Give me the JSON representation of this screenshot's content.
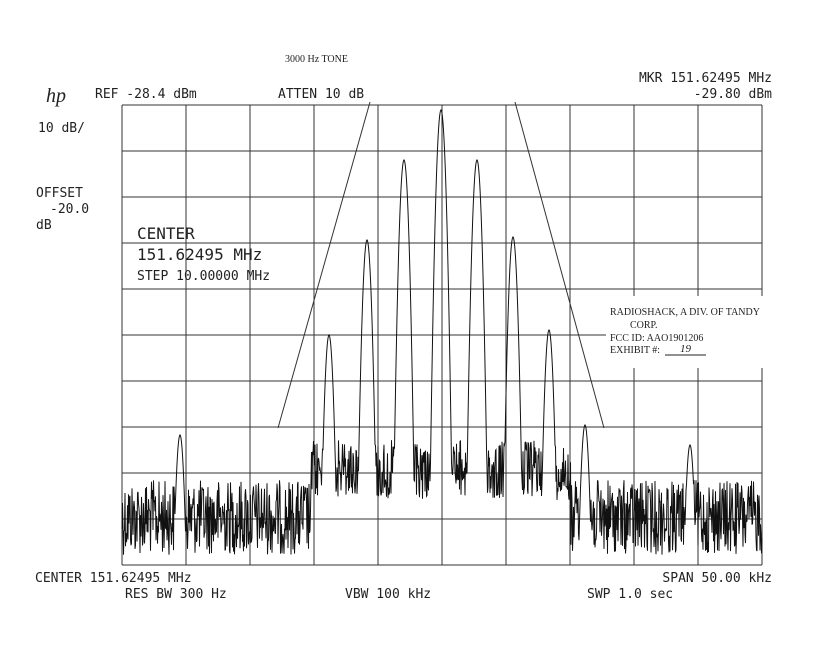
{
  "header": {
    "note": "3000 Hz  TONE",
    "logo": "hp",
    "ref": "REF -28.4 dBm",
    "atten": "ATTEN 10 dB",
    "marker_freq": "MKR 151.62495 MHz",
    "marker_level": "-29.80 dBm"
  },
  "left": {
    "scale": "10 dB/",
    "offset_label": "OFFSET",
    "offset_value": "-20.0",
    "offset_unit": "dB"
  },
  "center_box": {
    "label": "CENTER",
    "freq": "151.62495 MHz",
    "step": "STEP 10.00000 MHz"
  },
  "sticker": {
    "line1": "RADIOSHACK, A DIV. OF TANDY",
    "line2": "CORP.",
    "fcc": "FCC ID: AAO1901206",
    "exhibit_label": "EXHIBIT #:",
    "exhibit_value": "19"
  },
  "footer": {
    "center": "CENTER 151.62495 MHz",
    "span": "SPAN 50.00 kHz",
    "res_bw": "RES BW 300 Hz",
    "vbw": "VBW 100 kHz",
    "sweep": "SWP 1.0  sec"
  }
}
